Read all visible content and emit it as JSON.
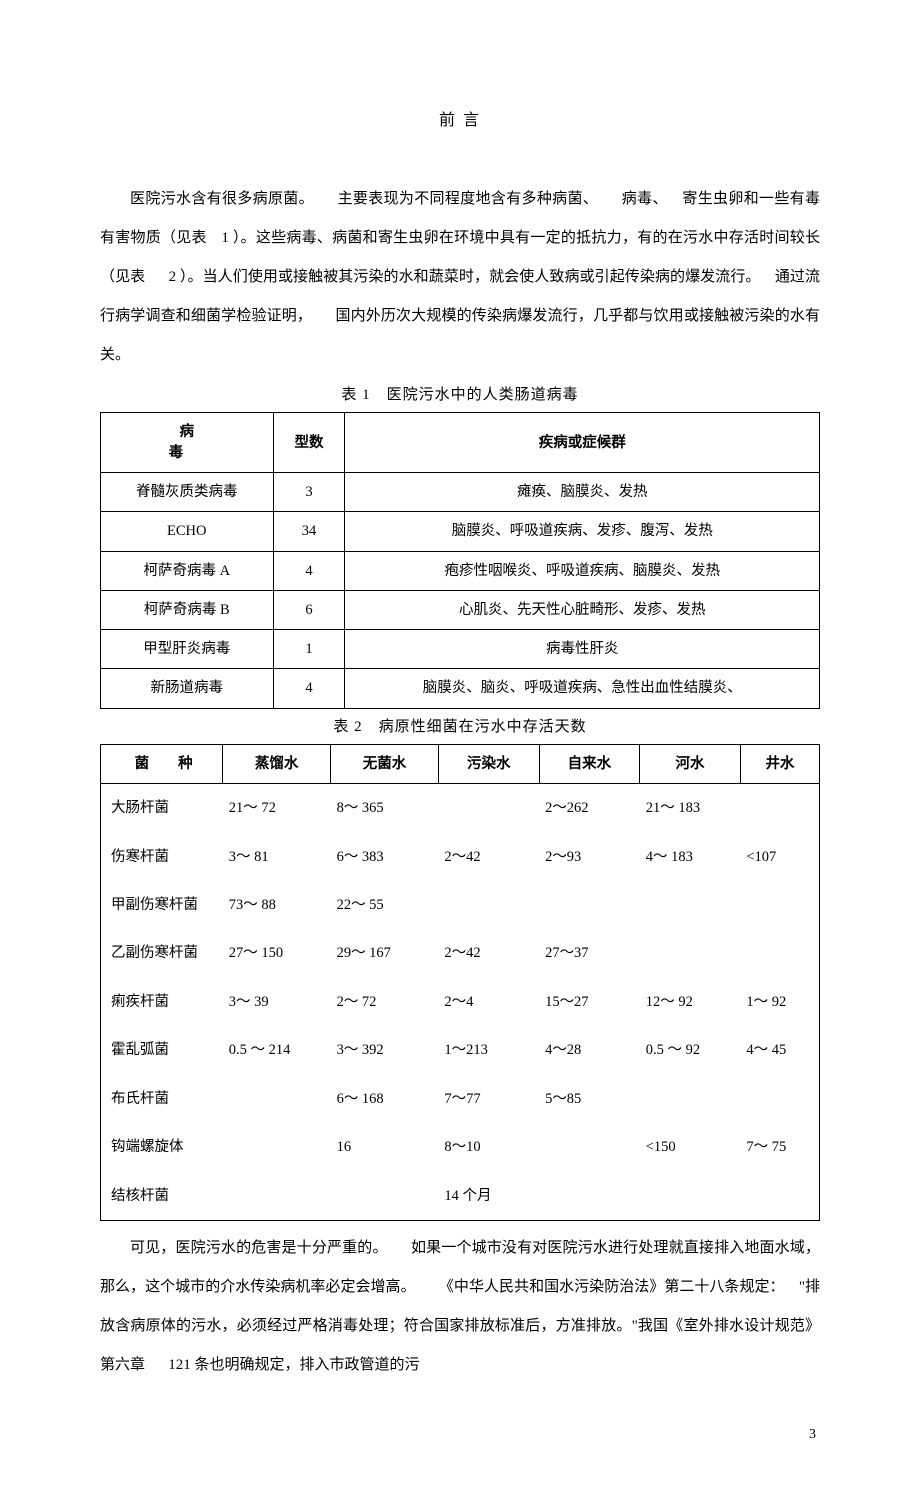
{
  "title": "前 言",
  "paragraph1_parts": [
    "医院污水含有很多病原菌。",
    "主要表现为不同程度地含有多种病菌、",
    "病毒、",
    "寄生虫卵和一些有毒有害物质（见表",
    "1 ）。这些病毒、病菌和寄生虫卵在环境中具有一定的抵抗力，有的在污水中存活时间较长（见表",
    "2 ）。当人们使用或接触被其污染的水和蔬菜时，就会使人致病或引起传染病的爆发流行。",
    "通过流行病学调查和细菌学检验证明，",
    "国内外历次大规模的传染病爆发流行，几乎都与饮用或接触被污染的水有关。"
  ],
  "table1": {
    "caption": "表 1　医院污水中的人类肠道病毒",
    "headers": [
      "病　　毒",
      "型数",
      "疾病或症候群"
    ],
    "rows": [
      [
        "脊髓灰质类病毒",
        "3",
        "瘫痪、脑膜炎、发热"
      ],
      [
        "ECHO",
        "34",
        "脑膜炎、呼吸道疾病、发疹、腹泻、发热"
      ],
      [
        "柯萨奇病毒 A",
        "4",
        "疱疹性咽喉炎、呼吸道疾病、脑膜炎、发热"
      ],
      [
        "柯萨奇病毒 B",
        "6",
        "心肌炎、先天性心脏畸形、发疹、发热"
      ],
      [
        "甲型肝炎病毒",
        "1",
        "病毒性肝炎"
      ],
      [
        "新肠道病毒",
        "4",
        "脑膜炎、脑炎、呼吸道疾病、急性出血性结膜炎、"
      ]
    ]
  },
  "table2": {
    "caption": "表 2　病原性细菌在污水中存活天数",
    "headers": [
      "菌　　种",
      "蒸馏水",
      "无菌水",
      "污染水",
      "自来水",
      "河水",
      "井水"
    ],
    "rows": [
      [
        "大肠杆菌",
        "21～ 72",
        "8～ 365",
        "",
        "2～262",
        "21～ 183",
        ""
      ],
      [
        "伤寒杆菌",
        "3～ 81",
        "6～ 383",
        "2～42",
        "2～93",
        "4～ 183",
        "<107"
      ],
      [
        "甲副伤寒杆菌",
        "73～ 88",
        "22～ 55",
        "",
        "",
        "",
        ""
      ],
      [
        "乙副伤寒杆菌",
        "27～ 150",
        "29～ 167",
        "2～42",
        "27～37",
        "",
        ""
      ],
      [
        "痢疾杆菌",
        "3～ 39",
        "2～ 72",
        "2～4",
        "15～27",
        "12～ 92",
        "1～ 92"
      ],
      [
        "霍乱弧菌",
        "0.5 ～ 214",
        "3～ 392",
        "1～213",
        "4～28",
        "0.5 ～ 92",
        "4～ 45"
      ],
      [
        "布氏杆菌",
        "",
        "6～ 168",
        "7～77",
        "5～85",
        "",
        ""
      ],
      [
        "钩端螺旋体",
        "",
        "16",
        "8～10",
        "",
        "<150",
        "7～ 75"
      ],
      [
        "结核杆菌",
        "",
        "",
        "14 个月",
        "",
        "",
        ""
      ]
    ]
  },
  "paragraph2_parts": [
    "可见，医院污水的危害是十分严重的。",
    "如果一个城市没有对医院污水进行处理就直接排入地面水域，那么，这个城市的介水传染病机率必定会增高。",
    "《中华人民共和国水污染防治法》第二十八条规定：",
    "\"排放含病原体的污水，必须经过严格消毒处理；符合国家排放标准后，方准排放。\"我国《室外排水设计规范》第六章",
    "121 条也明确规定，排入市政管道的污"
  ],
  "page_number": "3"
}
